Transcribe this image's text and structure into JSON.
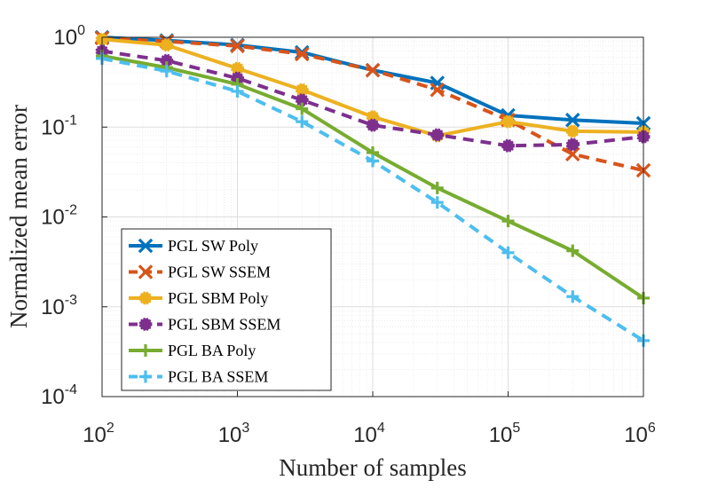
{
  "chart_data": {
    "type": "line",
    "title": "",
    "xlabel": "Number of samples",
    "ylabel": "Normalized mean error",
    "xscale": "log",
    "yscale": "log",
    "xlim": [
      100,
      1000000
    ],
    "ylim": [
      0.0001,
      1
    ],
    "grid": true,
    "legend_location": "bottom-left",
    "x_ticks": [
      {
        "value": 100,
        "base": "10",
        "exp": "2"
      },
      {
        "value": 1000,
        "base": "10",
        "exp": "3"
      },
      {
        "value": 10000,
        "base": "10",
        "exp": "4"
      },
      {
        "value": 100000,
        "base": "10",
        "exp": "5"
      },
      {
        "value": 1000000,
        "base": "10",
        "exp": "6"
      }
    ],
    "y_ticks": [
      {
        "value": 1,
        "base": "10",
        "exp": "0"
      },
      {
        "value": 0.1,
        "base": "10",
        "exp": "-1"
      },
      {
        "value": 0.01,
        "base": "10",
        "exp": "-2"
      },
      {
        "value": 0.001,
        "base": "10",
        "exp": "-3"
      },
      {
        "value": 0.0001,
        "base": "10",
        "exp": "-4"
      }
    ],
    "x": [
      100,
      300,
      1000,
      3000,
      10000,
      30000,
      100000,
      300000,
      1000000
    ],
    "series": [
      {
        "name": "PGL SW Poly",
        "color": "#0072BD",
        "marker": "x",
        "dashed": false,
        "values": [
          1.0,
          0.92,
          0.82,
          0.68,
          0.43,
          0.31,
          0.135,
          0.12,
          0.11
        ]
      },
      {
        "name": "PGL SW SSEM",
        "color": "#D95319",
        "marker": "x",
        "dashed": true,
        "values": [
          0.98,
          0.9,
          0.8,
          0.65,
          0.43,
          0.26,
          0.12,
          0.05,
          0.033
        ]
      },
      {
        "name": "PGL SBM Poly",
        "color": "#EDB120",
        "marker": "dot",
        "dashed": false,
        "values": [
          0.95,
          0.82,
          0.45,
          0.26,
          0.13,
          0.08,
          0.115,
          0.09,
          0.088
        ]
      },
      {
        "name": "PGL SBM SSEM",
        "color": "#7E2F8E",
        "marker": "dot",
        "dashed": true,
        "values": [
          0.7,
          0.55,
          0.35,
          0.2,
          0.105,
          0.082,
          0.062,
          0.064,
          0.078
        ]
      },
      {
        "name": "PGL BA Poly",
        "color": "#77AC30",
        "marker": "+",
        "dashed": false,
        "values": [
          0.62,
          0.46,
          0.3,
          0.16,
          0.052,
          0.021,
          0.009,
          0.0042,
          0.00125
        ]
      },
      {
        "name": "PGL BA SSEM",
        "color": "#4DBEEE",
        "marker": "+",
        "dashed": true,
        "values": [
          0.58,
          0.42,
          0.25,
          0.115,
          0.042,
          0.0145,
          0.004,
          0.0013,
          0.00042
        ]
      }
    ]
  }
}
